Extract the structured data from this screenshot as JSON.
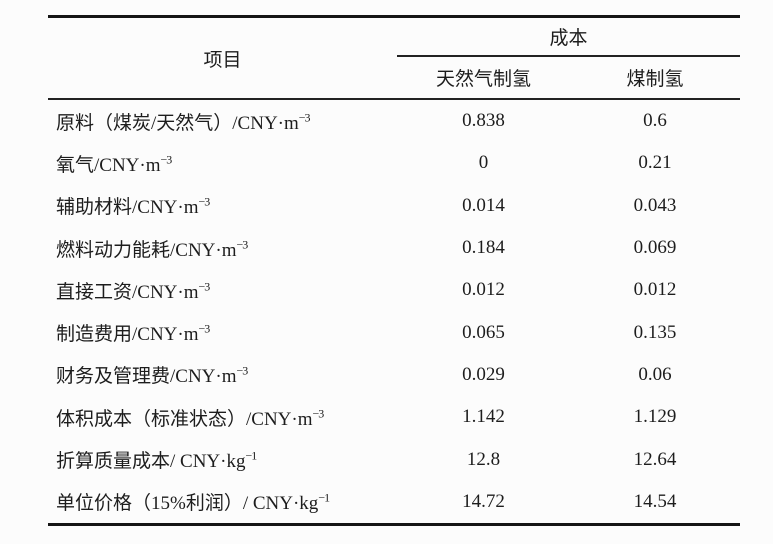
{
  "page": {
    "background": "#fcfcfc",
    "text_color": "#1d1d1d",
    "rule_color": "#161616"
  },
  "table": {
    "header": {
      "item": "项目",
      "cost_group": "成本",
      "subcol_gas": "天然气制氢",
      "subcol_coal": "煤制氢"
    },
    "rows": [
      {
        "label": "原料（煤炭/天然气）/CNY·m",
        "sup": "−3",
        "v1": "0.838",
        "v2": "0.6"
      },
      {
        "label": "氧气/CNY·m",
        "sup": "−3",
        "v1": "0",
        "v2": "0.21"
      },
      {
        "label": "辅助材料/CNY·m",
        "sup": "−3",
        "v1": "0.014",
        "v2": "0.043"
      },
      {
        "label": "燃料动力能耗/CNY·m",
        "sup": "−3",
        "v1": "0.184",
        "v2": "0.069"
      },
      {
        "label": "直接工资/CNY·m",
        "sup": "−3",
        "v1": "0.012",
        "v2": "0.012"
      },
      {
        "label": "制造费用/CNY·m",
        "sup": "−3",
        "v1": "0.065",
        "v2": "0.135"
      },
      {
        "label": "财务及管理费/CNY·m",
        "sup": "−3",
        "v1": "0.029",
        "v2": "0.06"
      },
      {
        "label": "体积成本（标准状态）/CNY·m",
        "sup": "−3",
        "v1": "1.142",
        "v2": "1.129"
      },
      {
        "label": "折算质量成本/ CNY·kg",
        "sup": "−1",
        "v1": "12.8",
        "v2": "12.64"
      },
      {
        "label": "单位价格（15%利润）/ CNY·kg",
        "sup": "−1",
        "v1": "14.72",
        "v2": "14.54"
      }
    ]
  },
  "chart_data": {
    "type": "table",
    "title": "",
    "columns": [
      "项目",
      "成本：天然气制氢",
      "成本：煤制氢"
    ],
    "rows": [
      [
        "原料（煤炭/天然气）/CNY·m⁻³",
        0.838,
        0.6
      ],
      [
        "氧气/CNY·m⁻³",
        0,
        0.21
      ],
      [
        "辅助材料/CNY·m⁻³",
        0.014,
        0.043
      ],
      [
        "燃料动力能耗/CNY·m⁻³",
        0.184,
        0.069
      ],
      [
        "直接工资/CNY·m⁻³",
        0.012,
        0.012
      ],
      [
        "制造费用/CNY·m⁻³",
        0.065,
        0.135
      ],
      [
        "财务及管理费/CNY·m⁻³",
        0.029,
        0.06
      ],
      [
        "体积成本（标准状态）/CNY·m⁻³",
        1.142,
        1.129
      ],
      [
        "折算质量成本/ CNY·kg⁻¹",
        12.8,
        12.64
      ],
      [
        "单位价格（15%利润）/ CNY·kg⁻¹",
        14.72,
        14.54
      ]
    ]
  }
}
